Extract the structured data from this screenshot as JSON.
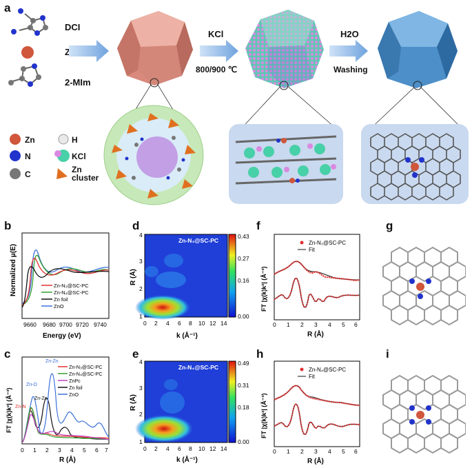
{
  "panel_letters": [
    "a",
    "b",
    "c",
    "d",
    "e",
    "f",
    "g",
    "h",
    "i"
  ],
  "schematic": {
    "reagents": [
      "DCI",
      "Zn2+",
      "2-MIm"
    ],
    "step1_label": "KCl",
    "step1_temp": "800/900 ℃",
    "step2_label": "H2O",
    "step2_sub": "Washing",
    "legend": [
      {
        "label": "Zn",
        "color": "#d0563c"
      },
      {
        "label": "H",
        "color": "#e9e9e9"
      },
      {
        "label": "N",
        "color": "#2233cc"
      },
      {
        "label": "KCl",
        "color": "#48d0a8"
      },
      {
        "label": "C",
        "color": "#777777"
      },
      {
        "label": "Zn cluster",
        "color": "#e07020"
      }
    ]
  },
  "panel_b": {
    "ylabel": "Normalized μ(E)",
    "xlabel": "Energy (eV)",
    "xticks": [
      "9660",
      "9680",
      "9700",
      "9720",
      "9740"
    ],
    "legend": [
      {
        "name": "Zn-N₃@SC-PC",
        "color": "#e03030"
      },
      {
        "name": "Zn-N₄@SC-PC",
        "color": "#30a030"
      },
      {
        "name": "Zn foil",
        "color": "#111111"
      },
      {
        "name": "ZnO",
        "color": "#3a6fd8"
      }
    ]
  },
  "panel_c": {
    "ylabel": "FT |χ(k)k²| (Å⁻³)",
    "xlabel": "R (Å)",
    "xticks": [
      "0",
      "1",
      "2",
      "3",
      "4",
      "5",
      "6",
      "7"
    ],
    "annotations": [
      "Zn-Zn",
      "Zn-O",
      "Zn-Zn",
      "Zn-N"
    ],
    "legend": [
      {
        "name": "Zn-N₃@SC-PC",
        "color": "#e03030"
      },
      {
        "name": "Zn-N₄@SC-PC",
        "color": "#30a030"
      },
      {
        "name": "ZnPc",
        "color": "#c040c0"
      },
      {
        "name": "Zn foil",
        "color": "#111111"
      },
      {
        "name": "ZnO",
        "color": "#3a6fd8"
      }
    ]
  },
  "panel_d": {
    "title": "Zn-N₃@SC-PC",
    "ylabel": "R (Å)",
    "xlabel": "k (Å⁻¹)",
    "yticks": [
      "1",
      "2",
      "3",
      "4"
    ],
    "xticks": [
      "0",
      "2",
      "4",
      "6",
      "8",
      "10",
      "12",
      "14"
    ],
    "colorbar": [
      "0.43",
      "0.27",
      "0.16",
      "0.00"
    ]
  },
  "panel_e": {
    "title": "Zn-N₄@SC-PC",
    "ylabel": "R (Å)",
    "xlabel": "k (Å⁻¹)",
    "yticks": [
      "1",
      "2",
      "3",
      "4"
    ],
    "xticks": [
      "0",
      "2",
      "4",
      "6",
      "8",
      "10",
      "12",
      "14"
    ],
    "colorbar": [
      "0.49",
      "0.31",
      "0.18",
      "0.00"
    ]
  },
  "panel_f": {
    "ylabel": "FT |χ(k)k²| (Å⁻³)",
    "xlabel": "R (Å)",
    "xticks": [
      "0",
      "1",
      "2",
      "3",
      "4",
      "5",
      "6"
    ],
    "legend": [
      {
        "name": "Zn-N₃@SC-PC",
        "color": "#e03030"
      },
      {
        "name": "Fit",
        "color": "#111111"
      }
    ]
  },
  "panel_h": {
    "ylabel": "FT |χ(k)k²| (Å⁻³)",
    "xlabel": "R (Å)",
    "xticks": [
      "0",
      "1",
      "2",
      "3",
      "4",
      "5",
      "6"
    ],
    "legend": [
      {
        "name": "Zn-N₄@SC-PC",
        "color": "#e03030"
      },
      {
        "name": "Fit",
        "color": "#111111"
      }
    ]
  }
}
